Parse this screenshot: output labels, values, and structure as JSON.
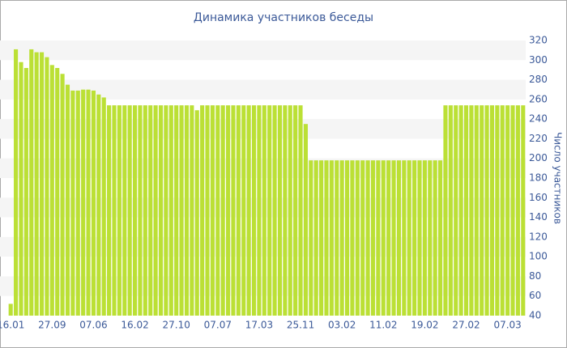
{
  "chart_data": {
    "type": "bar",
    "title": "Динамика участников беседы",
    "y_label": "Число участников",
    "categories": [
      "16.01",
      null,
      null,
      null,
      null,
      null,
      null,
      null,
      "27.09",
      null,
      null,
      null,
      null,
      null,
      null,
      null,
      "07.06",
      null,
      null,
      null,
      null,
      null,
      null,
      null,
      "16.02",
      null,
      null,
      null,
      null,
      null,
      null,
      null,
      "27.10",
      null,
      null,
      null,
      null,
      null,
      null,
      null,
      "07.07",
      null,
      null,
      null,
      null,
      null,
      null,
      null,
      "17.03",
      null,
      null,
      null,
      null,
      null,
      null,
      null,
      "25.11",
      null,
      null,
      null,
      null,
      null,
      null,
      null,
      "03.02",
      null,
      null,
      null,
      null,
      null,
      null,
      null,
      "11.02",
      null,
      null,
      null,
      null,
      null,
      null,
      null,
      "19.02",
      null,
      null,
      null,
      null,
      null,
      null,
      null,
      "27.02",
      null,
      null,
      null,
      null,
      null,
      null,
      null,
      "07.03",
      null,
      null,
      null
    ],
    "values": [
      52,
      311,
      298,
      292,
      311,
      308,
      308,
      303,
      295,
      292,
      286,
      275,
      269,
      269,
      270,
      270,
      269,
      265,
      262,
      254,
      254,
      254,
      254,
      254,
      254,
      254,
      254,
      254,
      254,
      254,
      254,
      254,
      254,
      254,
      254,
      254,
      249,
      254,
      254,
      254,
      254,
      254,
      254,
      254,
      254,
      254,
      254,
      254,
      254,
      254,
      254,
      254,
      254,
      254,
      254,
      254,
      254,
      235,
      198,
      198,
      198,
      198,
      198,
      198,
      198,
      198,
      198,
      198,
      198,
      198,
      198,
      198,
      198,
      198,
      198,
      198,
      198,
      198,
      198,
      198,
      198,
      198,
      198,
      198,
      254,
      254,
      254,
      254,
      254,
      254,
      254,
      254,
      254,
      254,
      254,
      254,
      254,
      254,
      254,
      254
    ],
    "color": "#bbe035",
    "ylim": [
      40,
      320
    ],
    "yticks": [
      40,
      60,
      80,
      100,
      120,
      140,
      160,
      180,
      200,
      220,
      240,
      260,
      280,
      300,
      320
    ],
    "grid": true
  }
}
